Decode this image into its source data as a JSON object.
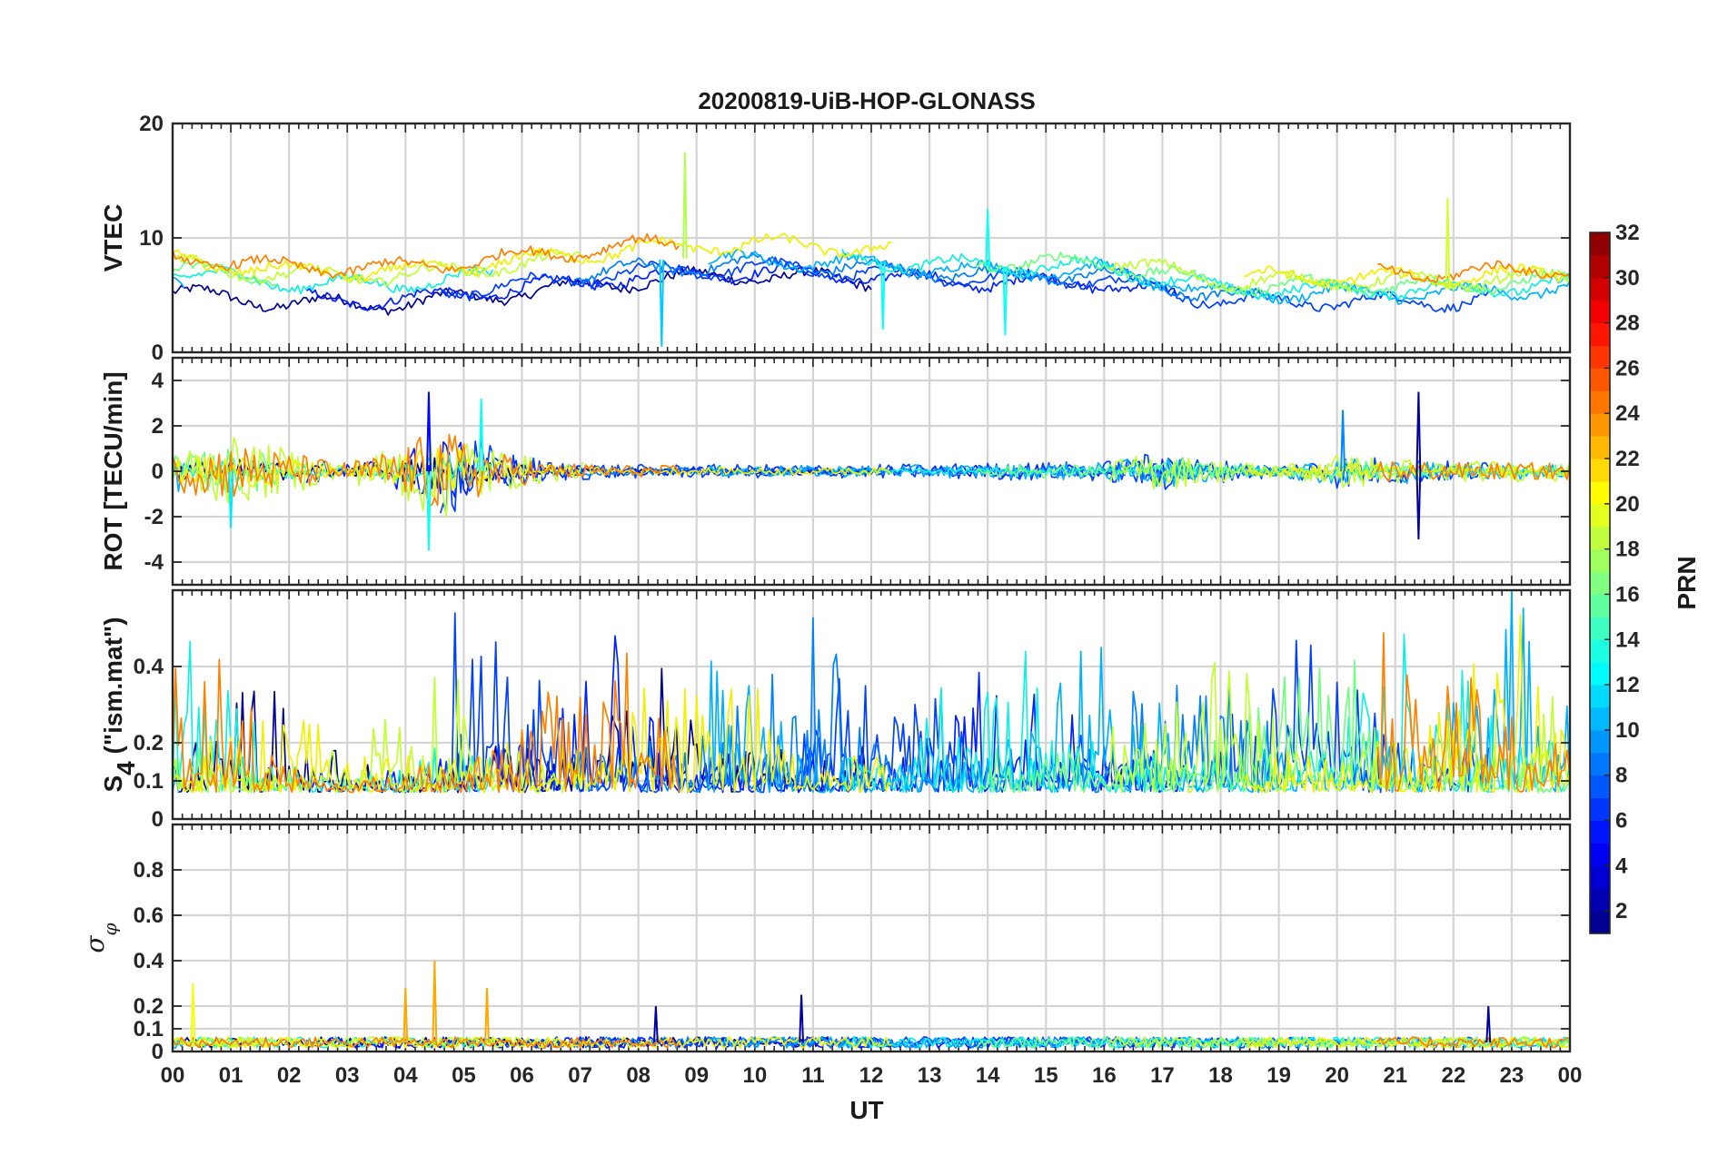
{
  "chart_data": {
    "type": "line",
    "title": "20200819-UiB-HOP-GLONASS",
    "xlabel": "UT",
    "x_tick_labels": [
      "00",
      "01",
      "02",
      "03",
      "04",
      "05",
      "06",
      "07",
      "08",
      "09",
      "10",
      "11",
      "12",
      "13",
      "14",
      "15",
      "16",
      "17",
      "18",
      "19",
      "20",
      "21",
      "22",
      "23",
      "00"
    ],
    "xlim": [
      0,
      24
    ],
    "grid": true,
    "panels": [
      {
        "ylabel": "VTEC",
        "ylim": [
          0,
          20
        ],
        "y_ticks": [
          0,
          10,
          20
        ],
        "y_tick_labels": [
          "0",
          "10",
          "20"
        ],
        "profile": {
          "x": [
            0,
            2,
            4,
            6,
            8,
            10,
            12,
            14,
            16,
            18,
            20,
            22,
            24
          ],
          "y": [
            7,
            6,
            6,
            7,
            8,
            8.5,
            8,
            7.5,
            7.5,
            5.5,
            5.5,
            5.5,
            6
          ]
        },
        "spikes": [
          {
            "x": 8.8,
            "y": 17.5,
            "prn": 18
          },
          {
            "x": 8.4,
            "y": 0.5,
            "prn": 11
          },
          {
            "x": 14.0,
            "y": 12.5,
            "prn": 13
          },
          {
            "x": 14.3,
            "y": 1.5,
            "prn": 13
          },
          {
            "x": 21.9,
            "y": 13.5,
            "prn": 19
          },
          {
            "x": 12.2,
            "y": 2.0,
            "prn": 13
          }
        ]
      },
      {
        "ylabel": "ROT [TECU/min]",
        "ylim": [
          -5,
          5
        ],
        "y_ticks": [
          -4,
          -2,
          0,
          2,
          4
        ],
        "y_tick_labels": [
          "-4",
          "-2",
          "0",
          "2",
          "4"
        ],
        "noise_envelope": {
          "x": [
            0,
            1,
            3,
            4,
            4.5,
            5,
            5.7,
            6.5,
            8,
            12,
            16,
            17,
            17.5,
            19,
            20,
            21,
            22,
            24
          ],
          "y": [
            0.7,
            1.0,
            0.3,
            0.9,
            1.5,
            1.2,
            0.6,
            0.3,
            0.2,
            0.2,
            0.3,
            0.6,
            0.4,
            0.2,
            0.5,
            0.4,
            0.3,
            0.3
          ]
        },
        "spikes": [
          {
            "x": 4.4,
            "y": 3.5,
            "prn": 5
          },
          {
            "x": 4.4,
            "y": -3.5,
            "prn": 13
          },
          {
            "x": 5.3,
            "y": 3.2,
            "prn": 13
          },
          {
            "x": 20.1,
            "y": 2.7,
            "prn": 9
          },
          {
            "x": 21.4,
            "y": 3.5,
            "prn": 2
          },
          {
            "x": 21.4,
            "y": -3.0,
            "prn": 2
          },
          {
            "x": 1.0,
            "y": -2.5,
            "prn": 12
          }
        ]
      },
      {
        "ylabel": "S4 (\"ism.mat\")",
        "ylabel_main": "S",
        "ylabel_sub": "4",
        "ylabel_tail": " (\"ism.mat\")",
        "ylim": [
          0,
          0.6
        ],
        "y_ticks": [
          0,
          0.1,
          0.2,
          0.4
        ],
        "y_tick_labels": [
          "0",
          "0.1",
          "0.2",
          "0.4"
        ],
        "baseline": 0.07,
        "activity": {
          "x": [
            0,
            1,
            2,
            3,
            4,
            5,
            6,
            7,
            8,
            9,
            10,
            11,
            12,
            13,
            14,
            15,
            16,
            17,
            18,
            19,
            20,
            21,
            22,
            23,
            24
          ],
          "y": [
            0.45,
            0.35,
            0.3,
            0.2,
            0.3,
            0.5,
            0.4,
            0.45,
            0.5,
            0.4,
            0.35,
            0.45,
            0.4,
            0.4,
            0.35,
            0.45,
            0.45,
            0.4,
            0.35,
            0.4,
            0.45,
            0.45,
            0.4,
            0.5,
            0.45
          ]
        }
      },
      {
        "ylabel": "σφ",
        "ylabel_main": "σ",
        "ylabel_sub": "φ",
        "ylim": [
          0,
          1
        ],
        "y_ticks": [
          0,
          0.1,
          0.2,
          0.4,
          0.6,
          0.8
        ],
        "y_tick_labels": [
          "0",
          "0.1",
          "0.2",
          "0.4",
          "0.6",
          "0.8"
        ],
        "baseline": 0.04,
        "spikes": [
          {
            "x": 0.35,
            "y": 0.3,
            "prn": 20
          },
          {
            "x": 4.0,
            "y": 0.28,
            "prn": 23
          },
          {
            "x": 4.5,
            "y": 0.4,
            "prn": 23
          },
          {
            "x": 5.4,
            "y": 0.28,
            "prn": 23
          },
          {
            "x": 10.8,
            "y": 0.25,
            "prn": 2
          },
          {
            "x": 8.3,
            "y": 0.2,
            "prn": 2
          },
          {
            "x": 22.6,
            "y": 0.2,
            "prn": 2
          }
        ]
      }
    ],
    "colorbar": {
      "label": "PRN",
      "colormap": "jet",
      "range": [
        1,
        32
      ],
      "ticks": [
        2,
        4,
        6,
        8,
        10,
        12,
        14,
        16,
        18,
        20,
        22,
        24,
        26,
        28,
        30,
        32
      ],
      "tick_labels": [
        "2",
        "4",
        "6",
        "8",
        "10",
        "12",
        "14",
        "16",
        "18",
        "20",
        "22",
        "24",
        "26",
        "28",
        "30",
        "32"
      ]
    },
    "series": [
      {
        "prn": 2,
        "color": "#00008f"
      },
      {
        "prn": 4,
        "color": "#0020ff"
      },
      {
        "prn": 6,
        "color": "#0040ff"
      },
      {
        "prn": 9,
        "color": "#0080ff"
      },
      {
        "prn": 11,
        "color": "#00b0ff"
      },
      {
        "prn": 13,
        "color": "#10f0e0"
      },
      {
        "prn": 16,
        "color": "#70ff80"
      },
      {
        "prn": 19,
        "color": "#c0ff30"
      },
      {
        "prn": 20,
        "color": "#f0f000"
      },
      {
        "prn": 23,
        "color": "#ff8000"
      }
    ]
  }
}
